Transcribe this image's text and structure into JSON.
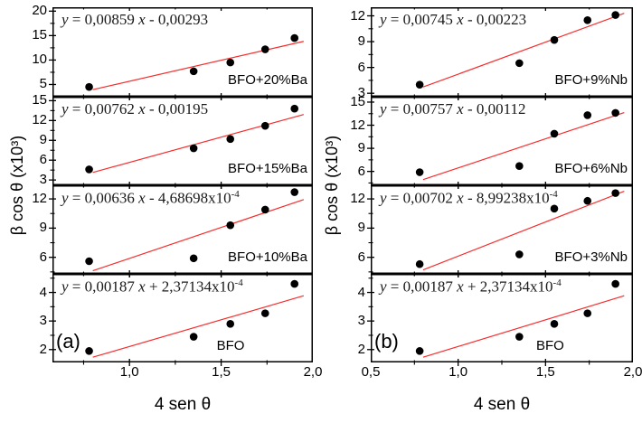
{
  "figure_colors": {
    "fit_line": "#f62e2e",
    "point": "#000000",
    "axis": "#000000"
  },
  "chart_data": {
    "type": "scatter",
    "x_values": [
      0.78,
      1.35,
      1.55,
      1.74,
      1.9
    ],
    "fit_line_x_range": [
      0.8,
      1.95
    ],
    "columns": [
      {
        "id": "left",
        "letter": "(a)",
        "xlabel": "4 sen θ",
        "ylabel": "β cos θ (x10³)",
        "xlim": [
          0.58,
          2.0
        ],
        "xtick_values": [
          1.0,
          1.5,
          2.0
        ],
        "xtick_labels": [
          "1,0",
          "1,5",
          "2,0"
        ],
        "panels": [
          {
            "label": "BFO+20%Ba",
            "equation": "y = 0,00859 x - 0,00293",
            "slope": 0.00859,
            "intercept": -0.00293,
            "y_values": [
              4.5,
              7.7,
              9.5,
              12.2,
              14.5
            ],
            "yticks": [
              5,
              10,
              15,
              20
            ],
            "ylim": [
              2.5,
              20.8
            ]
          },
          {
            "label": "BFO+15%Ba",
            "equation": "y = 0,00762 x - 0,00195",
            "slope": 0.00762,
            "intercept": -0.00195,
            "y_values": [
              4.6,
              7.8,
              9.2,
              11.2,
              13.8
            ],
            "yticks": [
              3,
              6,
              9,
              12,
              15
            ],
            "ylim": [
              2.2,
              15.6
            ]
          },
          {
            "label": "BFO+10%Ba",
            "equation": "y = 0,00636 x - 4,68698x10^-4",
            "slope": 0.00636,
            "intercept": -0.000468698,
            "y_values": [
              5.6,
              5.9,
              9.3,
              10.9,
              12.7
            ],
            "yticks": [
              6,
              9,
              12
            ],
            "ylim": [
              4.3,
              13.4
            ]
          },
          {
            "label": "BFO",
            "equation": "y = 0,00187 x + 2,37134x10^-4",
            "slope": 0.00187,
            "intercept": 0.000237134,
            "y_values": [
              1.95,
              2.45,
              2.9,
              3.27,
              4.3
            ],
            "yticks": [
              2,
              3,
              4
            ],
            "ylim": [
              1.55,
              4.65
            ]
          }
        ]
      },
      {
        "id": "right",
        "letter": "(b)",
        "xlabel": "4 sen θ",
        "ylabel": "β cos θ (x10³)",
        "xlim": [
          0.5,
          2.0
        ],
        "xtick_values": [
          0.5,
          1.0,
          1.5,
          2.0
        ],
        "xtick_labels": [
          "0,5",
          "1,0",
          "1,5",
          "2,0"
        ],
        "panels": [
          {
            "label": "BFO+9%Nb",
            "equation": "y = 0,00745 x - 0,00223",
            "slope": 0.00745,
            "intercept": -0.00223,
            "y_values": [
              4.0,
              6.5,
              9.2,
              11.5,
              12.1
            ],
            "yticks": [
              3,
              6,
              9,
              12
            ],
            "ylim": [
              2.6,
              13.0
            ]
          },
          {
            "label": "BFO+6%Nb",
            "equation": "y = 0,00757 x - 0,00112",
            "slope": 0.00757,
            "intercept": -0.00112,
            "y_values": [
              5.9,
              6.7,
              10.9,
              13.3,
              13.6
            ],
            "yticks": [
              6,
              9,
              12,
              15
            ],
            "ylim": [
              4.2,
              15.7
            ]
          },
          {
            "label": "BFO+3%Nb",
            "equation": "y = 0,00702 x - 8,99238x10^-4",
            "slope": 0.00702,
            "intercept": -0.000899238,
            "y_values": [
              5.3,
              6.3,
              11.0,
              11.8,
              12.6
            ],
            "yticks": [
              6,
              9,
              12
            ],
            "ylim": [
              4.3,
              13.4
            ]
          },
          {
            "label": "BFO",
            "equation": "y = 0,00187 x + 2,37134x10^-4",
            "slope": 0.00187,
            "intercept": 0.000237134,
            "y_values": [
              1.95,
              2.45,
              2.9,
              3.27,
              4.3
            ],
            "yticks": [
              2,
              3,
              4
            ],
            "ylim": [
              1.55,
              4.65
            ]
          }
        ]
      }
    ]
  }
}
